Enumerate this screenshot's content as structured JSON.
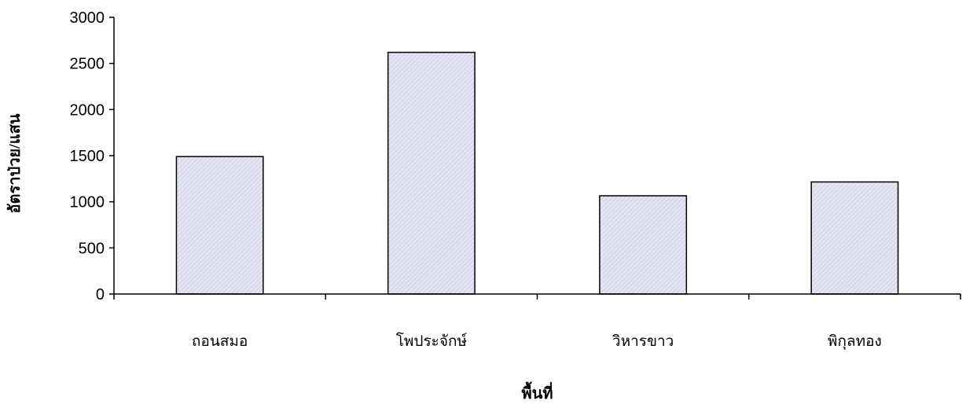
{
  "chart_data": {
    "type": "bar",
    "title": "",
    "xlabel": "พื้นที่",
    "ylabel": "อัตราป่วย/แสน",
    "categories": [
      "ถอนสมอ",
      "โพประจักษ์",
      "วิหารขาว",
      "พิกุลทอง"
    ],
    "values": [
      1490,
      2620,
      1065,
      1215
    ],
    "ylim": [
      0,
      3000
    ],
    "yticks": [
      0,
      500,
      1000,
      1500,
      2000,
      2500,
      3000
    ],
    "grid": false,
    "legend": "none",
    "bar_fill": "#e4e4f4",
    "bar_hatch": "#c4c4dc",
    "bar_stroke": "#000000"
  }
}
